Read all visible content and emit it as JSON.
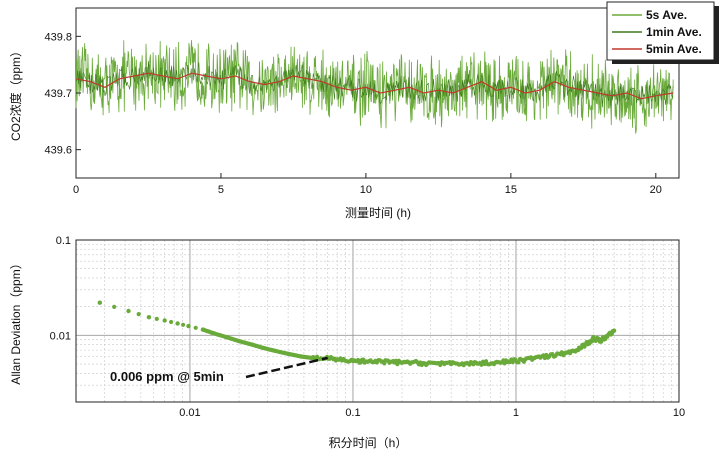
{
  "chart_data": [
    {
      "type": "line",
      "xlabel": "测量时间 (h)",
      "ylabel": "CO2浓度（ppm）",
      "xlim": [
        0,
        20.8
      ],
      "ylim": [
        439.55,
        439.85
      ],
      "x_ticks": [
        0,
        5,
        10,
        15,
        20
      ],
      "y_ticks": [
        439.6,
        439.7,
        439.8
      ],
      "y_tick_labels": [
        "439.6",
        "439.7",
        "439.8"
      ],
      "legend_position": "top-right",
      "series": [
        {
          "name": "5s Ave.",
          "color": "#6aaa3a",
          "center": 439.715,
          "half_range": 0.07,
          "x_range": [
            0,
            20.6
          ]
        },
        {
          "name": "1min Ave.",
          "color": "#3d7a1e",
          "center": 439.715,
          "half_range": 0.025,
          "x_range": [
            0,
            20.6
          ]
        },
        {
          "name": "5min Ave.",
          "color": "#c0392b",
          "x": [
            0,
            0.5,
            1,
            1.5,
            2,
            2.5,
            3,
            3.5,
            4,
            4.5,
            5,
            5.5,
            6,
            6.5,
            7,
            7.5,
            8,
            8.5,
            9,
            9.5,
            10,
            10.5,
            11,
            11.5,
            12,
            12.5,
            13,
            13.5,
            14,
            14.5,
            15,
            15.5,
            16,
            16.5,
            17,
            17.5,
            18,
            18.5,
            19,
            19.5,
            20,
            20.6
          ],
          "y": [
            439.725,
            439.72,
            439.71,
            439.725,
            439.73,
            439.735,
            439.73,
            439.725,
            439.735,
            439.73,
            439.725,
            439.73,
            439.72,
            439.715,
            439.72,
            439.73,
            439.725,
            439.72,
            439.71,
            439.705,
            439.71,
            439.7,
            439.705,
            439.71,
            439.7,
            439.705,
            439.7,
            439.71,
            439.72,
            439.705,
            439.71,
            439.7,
            439.705,
            439.72,
            439.71,
            439.705,
            439.7,
            439.695,
            439.7,
            439.69,
            439.695,
            439.7
          ]
        }
      ]
    },
    {
      "type": "scatter",
      "xlabel": "积分时间（h）",
      "ylabel": "Allan Deviation（ppm）",
      "x_scale": "log",
      "y_scale": "log",
      "xlim": [
        0.002,
        10
      ],
      "ylim": [
        0.002,
        0.1
      ],
      "x_ticks": [
        0.01,
        0.1,
        1,
        10
      ],
      "x_tick_labels": [
        "0.01",
        "0.1",
        "1",
        "10"
      ],
      "y_ticks": [
        0.01,
        0.1
      ],
      "y_tick_labels": [
        "0.01",
        "0.1"
      ],
      "grid": true,
      "color": "#6aaa3a",
      "series": [
        {
          "x": [
            0.0028,
            0.0042,
            0.0056,
            0.007,
            0.0084,
            0.0098,
            0.012,
            0.014,
            0.017,
            0.02,
            0.024,
            0.028,
            0.033,
            0.04,
            0.048,
            0.056,
            0.067,
            0.08,
            0.1,
            0.12,
            0.15,
            0.18,
            0.22,
            0.27,
            0.33,
            0.4,
            0.5,
            0.6,
            0.75,
            0.9,
            1.1,
            1.3,
            1.6,
            2.0,
            2.4,
            2.8,
            3.0,
            3.3,
            3.6,
            4.0
          ],
          "y": [
            0.022,
            0.018,
            0.0155,
            0.0143,
            0.0133,
            0.0125,
            0.0115,
            0.0105,
            0.0095,
            0.0087,
            0.008,
            0.0074,
            0.0069,
            0.0064,
            0.006,
            0.0058,
            0.0057,
            0.0056,
            0.0054,
            0.0053,
            0.0053,
            0.0052,
            0.0052,
            0.0051,
            0.0051,
            0.005,
            0.0051,
            0.0051,
            0.0052,
            0.0053,
            0.0055,
            0.0058,
            0.006,
            0.0065,
            0.007,
            0.0085,
            0.0093,
            0.0088,
            0.0098,
            0.0112
          ]
        }
      ],
      "annotation": {
        "text": "0.006 ppm @ 5min",
        "target": [
          0.07,
          0.0058
        ]
      }
    }
  ]
}
